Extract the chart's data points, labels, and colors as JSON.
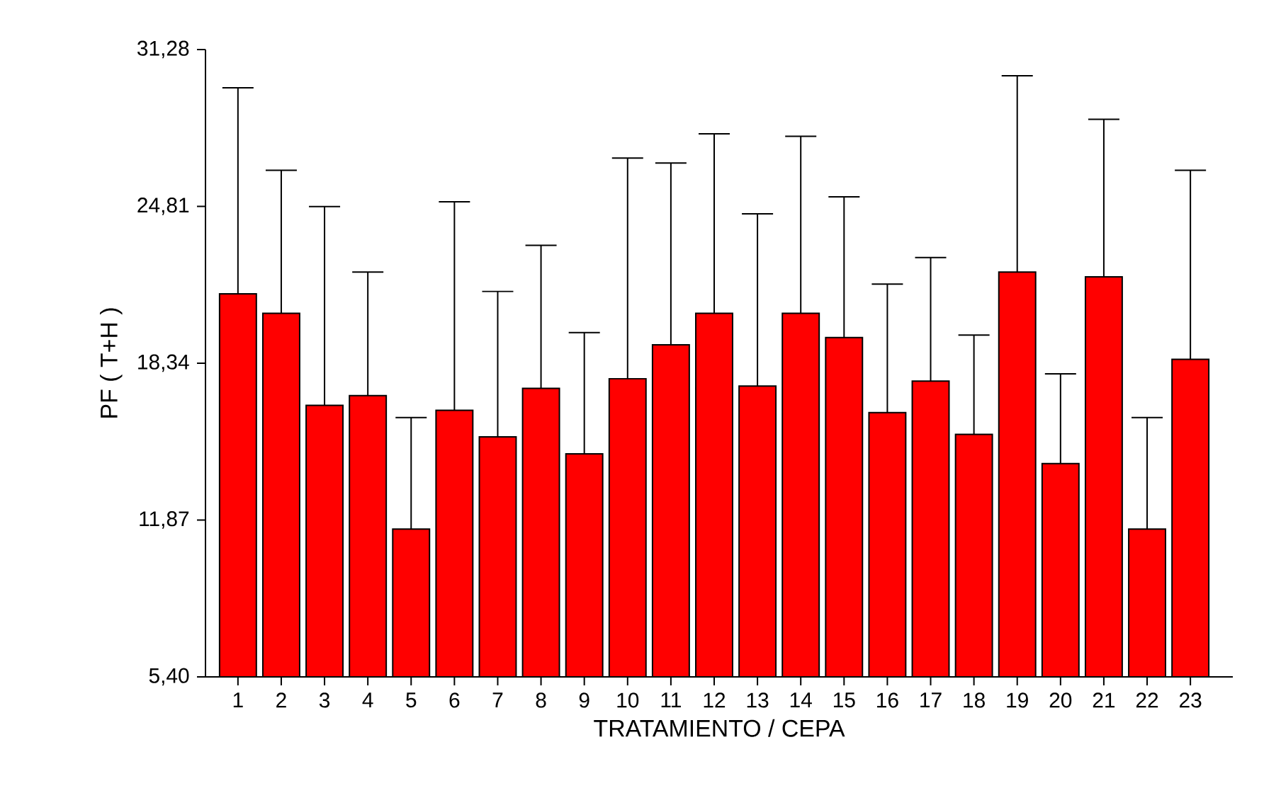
{
  "chart_data": {
    "type": "bar",
    "xlabel": "TRATAMIENTO / CEPA",
    "ylabel": "PF ( T+H )",
    "categories": [
      "1",
      "2",
      "3",
      "4",
      "5",
      "6",
      "7",
      "8",
      "9",
      "10",
      "11",
      "12",
      "13",
      "14",
      "15",
      "16",
      "17",
      "18",
      "19",
      "20",
      "21",
      "22",
      "23"
    ],
    "values": [
      21.2,
      20.4,
      16.6,
      17.0,
      11.5,
      16.4,
      15.3,
      17.3,
      14.6,
      17.7,
      19.1,
      20.4,
      17.4,
      20.4,
      19.4,
      16.3,
      17.6,
      15.4,
      22.1,
      14.2,
      21.9,
      11.5,
      18.5
    ],
    "errors": [
      8.5,
      5.9,
      8.2,
      5.1,
      4.6,
      8.6,
      6.0,
      5.9,
      5.0,
      9.1,
      7.5,
      7.4,
      7.1,
      7.3,
      5.8,
      5.3,
      5.1,
      4.1,
      8.1,
      3.7,
      6.5,
      4.6,
      7.8
    ],
    "color": "#ff0000",
    "ylim": [
      5.4,
      31.28
    ],
    "yticks": [
      {
        "value": 5.4,
        "label": "5,40"
      },
      {
        "value": 11.87,
        "label": "11,87"
      },
      {
        "value": 18.34,
        "label": "18,34"
      },
      {
        "value": 24.81,
        "label": "24,81"
      },
      {
        "value": 31.28,
        "label": "31,28"
      }
    ],
    "grid": false
  }
}
